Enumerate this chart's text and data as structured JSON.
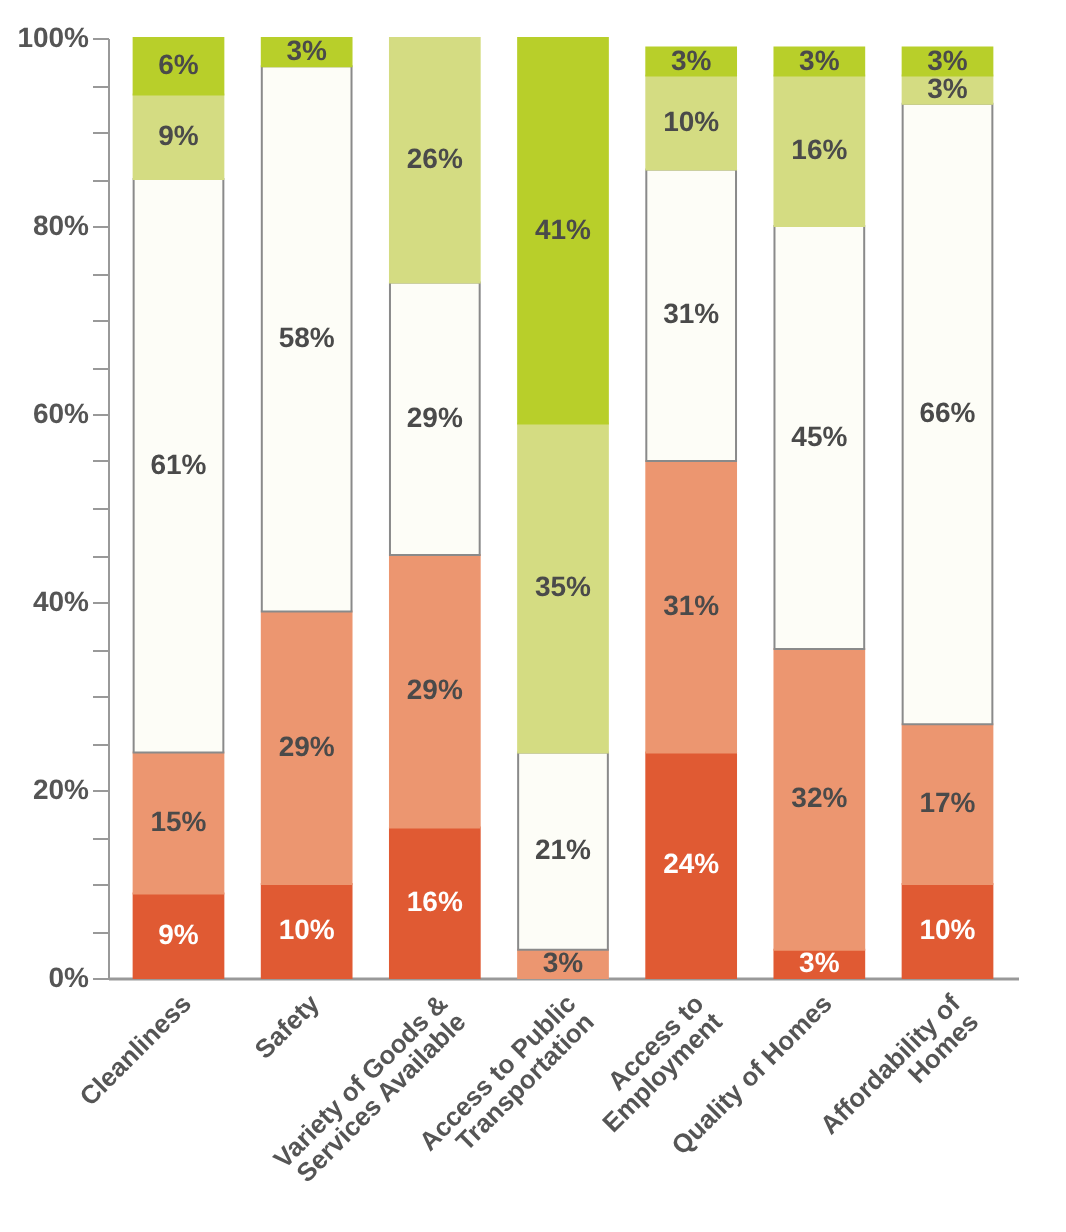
{
  "chart_data": {
    "type": "bar",
    "stacked": true,
    "categories": [
      "Cleanliness",
      "Safety",
      "Variety of Goods &\nServices Available",
      "Access to Public\nTransportation",
      "Access to\nEmployment",
      "Quality of Homes",
      "Affordability of\nHomes"
    ],
    "series": [
      {
        "color": "#e05a33",
        "values": [
          9,
          10,
          16,
          null,
          24,
          3,
          10
        ],
        "value_labels": [
          "9%",
          "10%",
          "16%",
          null,
          "24%",
          "3%",
          "10%"
        ]
      },
      {
        "color": "#ec9670",
        "values": [
          15,
          29,
          29,
          3,
          31,
          32,
          17
        ],
        "value_labels": [
          "15%",
          "29%",
          "29%",
          "3%",
          "31%",
          "32%",
          "17%"
        ]
      },
      {
        "color": "#fdfdf7",
        "values": [
          61,
          58,
          29,
          21,
          31,
          45,
          66
        ],
        "value_labels": [
          "61%",
          "58%",
          "29%",
          "21%",
          "31%",
          "45%",
          "66%"
        ]
      },
      {
        "color": "#d4dc82",
        "values": [
          9,
          null,
          26,
          35,
          10,
          16,
          3
        ],
        "value_labels": [
          "9%",
          null,
          "26%",
          "35%",
          "10%",
          "16%",
          "3%"
        ]
      },
      {
        "color": "#b8cf2a",
        "values": [
          6,
          3,
          null,
          41,
          3,
          3,
          3
        ],
        "value_labels": [
          "6%",
          "3%",
          null,
          "41%",
          "3%",
          "3%",
          "3%"
        ]
      }
    ],
    "ylim": [
      0,
      100
    ],
    "yticks": [
      {
        "value": 0,
        "label": "0%"
      },
      {
        "value": 5,
        "label": null
      },
      {
        "value": 10,
        "label": null
      },
      {
        "value": 15,
        "label": null
      },
      {
        "value": 20,
        "label": "20%"
      },
      {
        "value": 25,
        "label": null
      },
      {
        "value": 30,
        "label": null
      },
      {
        "value": 35,
        "label": null
      },
      {
        "value": 40,
        "label": "40%"
      },
      {
        "value": 45,
        "label": null
      },
      {
        "value": 50,
        "label": null
      },
      {
        "value": 55,
        "label": null
      },
      {
        "value": 60,
        "label": "60%"
      },
      {
        "value": 65,
        "label": null
      },
      {
        "value": 70,
        "label": null
      },
      {
        "value": 75,
        "label": null
      },
      {
        "value": 80,
        "label": "80%"
      },
      {
        "value": 85,
        "label": null
      },
      {
        "value": 90,
        "label": null
      },
      {
        "value": 95,
        "label": null
      },
      {
        "value": 100,
        "label": "100%"
      }
    ],
    "grid": false
  }
}
